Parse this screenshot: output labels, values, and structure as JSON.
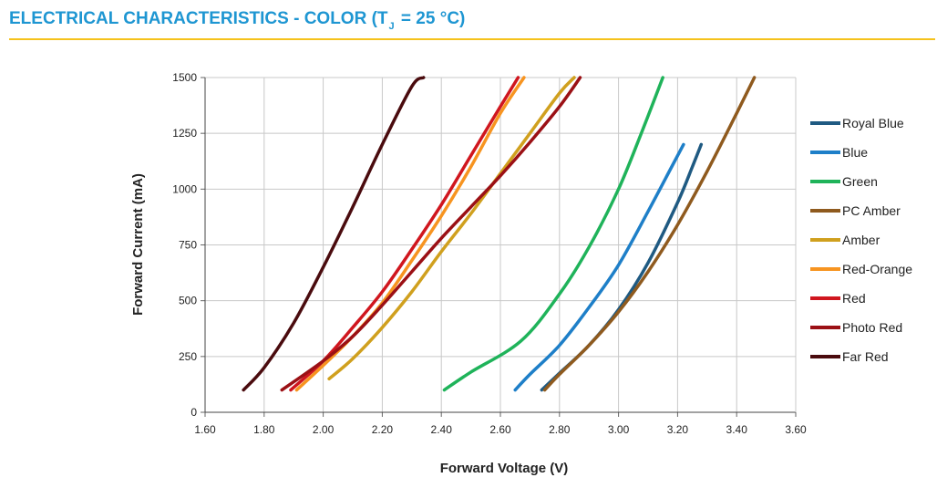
{
  "header": {
    "title_prefix": "ELECTRICAL CHARACTERISTICS - COLOR (T",
    "title_subscript": "J",
    "title_suffix": " = 25 °C)",
    "accent_color": "#1e96d2",
    "rule_color": "#f5c21c"
  },
  "chart_data": {
    "type": "line",
    "title": "",
    "xlabel": "Forward Voltage (V)",
    "ylabel": "Forward Current (mA)",
    "xlim": [
      1.6,
      3.6
    ],
    "ylim": [
      0,
      1500
    ],
    "xticks": [
      "1.60",
      "1.80",
      "2.00",
      "2.20",
      "2.40",
      "2.60",
      "2.80",
      "3.00",
      "3.20",
      "3.40",
      "3.60"
    ],
    "yticks": [
      "0",
      "250",
      "500",
      "750",
      "1000",
      "1250",
      "1500"
    ],
    "grid": true,
    "legend_position": "right",
    "series": [
      {
        "name": "Royal Blue",
        "color": "#1f5a82",
        "x": [
          2.74,
          2.8,
          2.9,
          3.0,
          3.1,
          3.2,
          3.25,
          3.28
        ],
        "y": [
          100,
          175,
          300,
          460,
          670,
          940,
          1100,
          1200
        ]
      },
      {
        "name": "Blue",
        "color": "#1e7fc8",
        "x": [
          2.65,
          2.7,
          2.8,
          2.9,
          3.0,
          3.1,
          3.18,
          3.22
        ],
        "y": [
          100,
          170,
          300,
          470,
          660,
          900,
          1100,
          1200
        ]
      },
      {
        "name": "Green",
        "color": "#1fb35a",
        "x": [
          2.41,
          2.5,
          2.67,
          2.8,
          2.9,
          3.0,
          3.08,
          3.15
        ],
        "y": [
          100,
          180,
          320,
          530,
          740,
          1000,
          1260,
          1500
        ]
      },
      {
        "name": "PC Amber",
        "color": "#8f5a1e",
        "x": [
          2.75,
          2.8,
          2.9,
          3.0,
          3.1,
          3.2,
          3.3,
          3.4,
          3.46
        ],
        "y": [
          100,
          170,
          300,
          450,
          630,
          840,
          1080,
          1340,
          1500
        ]
      },
      {
        "name": "Amber",
        "color": "#d0a01e",
        "x": [
          2.02,
          2.1,
          2.2,
          2.3,
          2.4,
          2.5,
          2.6,
          2.7,
          2.8,
          2.85
        ],
        "y": [
          150,
          240,
          380,
          540,
          720,
          890,
          1070,
          1250,
          1430,
          1500
        ]
      },
      {
        "name": "Red-Orange",
        "color": "#f79420",
        "x": [
          1.91,
          2.0,
          2.1,
          2.2,
          2.3,
          2.4,
          2.5,
          2.6,
          2.68
        ],
        "y": [
          100,
          210,
          340,
          490,
          680,
          880,
          1100,
          1340,
          1500
        ]
      },
      {
        "name": "Red",
        "color": "#d0161e",
        "x": [
          1.89,
          2.0,
          2.1,
          2.2,
          2.3,
          2.4,
          2.5,
          2.6,
          2.66
        ],
        "y": [
          100,
          230,
          380,
          540,
          730,
          930,
          1150,
          1370,
          1500
        ]
      },
      {
        "name": "Photo Red",
        "color": "#9b1015",
        "x": [
          1.86,
          2.0,
          2.1,
          2.2,
          2.3,
          2.4,
          2.5,
          2.6,
          2.7,
          2.8,
          2.87
        ],
        "y": [
          100,
          230,
          340,
          480,
          630,
          780,
          920,
          1060,
          1210,
          1370,
          1500
        ]
      },
      {
        "name": "Far Red",
        "color": "#4a0b0e",
        "x": [
          1.73,
          1.8,
          1.9,
          2.0,
          2.1,
          2.2,
          2.3,
          2.34
        ],
        "y": [
          100,
          200,
          400,
          650,
          920,
          1200,
          1460,
          1500
        ]
      }
    ]
  }
}
